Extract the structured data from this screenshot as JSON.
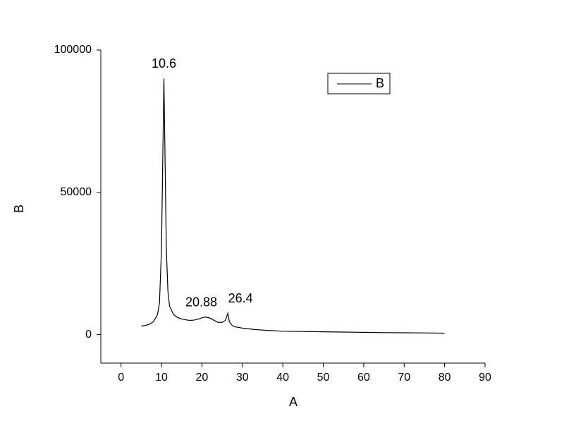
{
  "chart_data": {
    "type": "line",
    "x_label": "A",
    "y_label": "B",
    "xlim": [
      -5,
      90
    ],
    "ylim": [
      -10000,
      100000
    ],
    "xticks": [
      0,
      10,
      20,
      30,
      40,
      50,
      60,
      70,
      80,
      90
    ],
    "yticks": [
      0,
      50000,
      100000
    ],
    "legend": "upper right",
    "series": [
      {
        "name": "B",
        "color": "#000000",
        "x": [
          5,
          6,
          7,
          8,
          9,
          9.5,
          10,
          10.3,
          10.6,
          10.9,
          11.2,
          11.6,
          12,
          13,
          14,
          15,
          16,
          17,
          18,
          19,
          20,
          20.88,
          22,
          23,
          24,
          25,
          25.8,
          26.4,
          26.8,
          27.5,
          28,
          30,
          33,
          36,
          40,
          45,
          50,
          55,
          60,
          65,
          70,
          75,
          80
        ],
        "values": [
          3000,
          3200,
          3600,
          4500,
          7000,
          11000,
          30000,
          60000,
          90000,
          60000,
          30000,
          15000,
          10000,
          7000,
          6000,
          5500,
          5200,
          5000,
          5100,
          5400,
          5900,
          6200,
          5800,
          5000,
          4300,
          4300,
          5000,
          7500,
          4500,
          3200,
          2800,
          2300,
          1800,
          1500,
          1200,
          1100,
          1000,
          900,
          800,
          700,
          650,
          600,
          500
        ]
      }
    ],
    "annotations": [
      {
        "text": "10.6",
        "x": 10.6,
        "y": 90000
      },
      {
        "text": "20.88",
        "x": 20.88,
        "y": 6200
      },
      {
        "text": "26.4",
        "x": 26.4,
        "y": 7500
      }
    ]
  }
}
